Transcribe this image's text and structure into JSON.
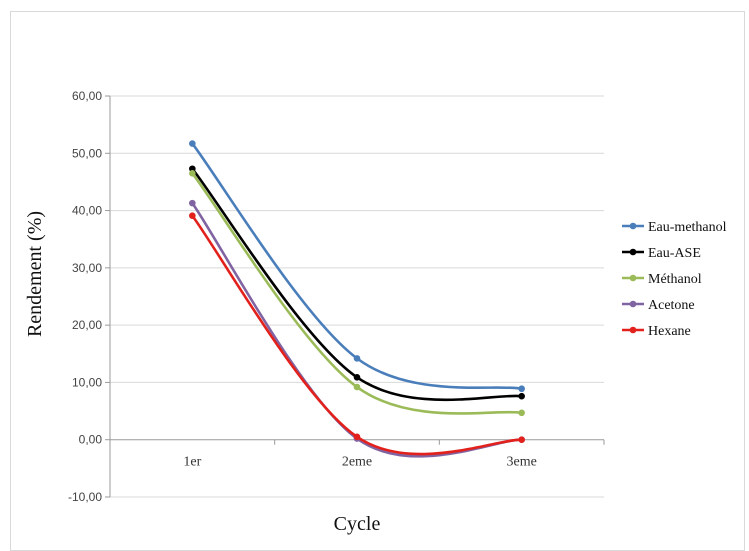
{
  "chart_data": {
    "type": "line",
    "title": "",
    "xlabel": "Cycle",
    "ylabel": "Rendement  (%)",
    "categories": [
      "1er",
      "2eme",
      "3eme"
    ],
    "ylim": [
      -10,
      60
    ],
    "ytick_step": 10,
    "ytick_labels": [
      "-10,00",
      "0,00",
      "10,00",
      "20,00",
      "30,00",
      "40,00",
      "50,00",
      "60,00"
    ],
    "grid": true,
    "smooth": true,
    "legend_position": "right",
    "series": [
      {
        "name": "Eau-methanol",
        "color": "#4a7ebb",
        "values": [
          51.7,
          14.2,
          8.9
        ]
      },
      {
        "name": "Eau-ASE",
        "color": "#000000",
        "values": [
          47.3,
          10.9,
          7.6
        ]
      },
      {
        "name": "Méthanol",
        "color": "#9bbb59",
        "values": [
          46.5,
          9.2,
          4.7
        ]
      },
      {
        "name": "Acetone",
        "color": "#8064a2",
        "values": [
          41.3,
          0.2,
          0.0
        ]
      },
      {
        "name": "Hexane",
        "color": "#e3211c",
        "values": [
          39.1,
          0.5,
          0.0
        ]
      }
    ]
  }
}
